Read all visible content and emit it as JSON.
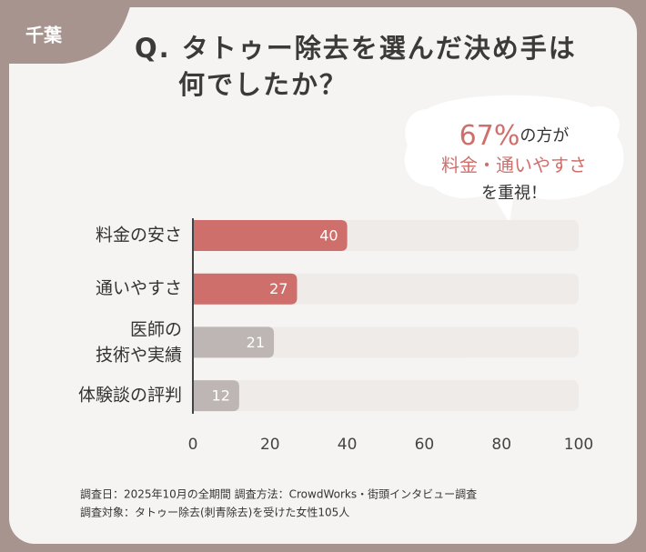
{
  "chart_data": {
    "type": "bar",
    "orientation": "horizontal",
    "badge": "千葉",
    "title": "Q. タトゥー除去を選んだ決め手は\n何でしたか？",
    "annotation": {
      "highlight": "67%",
      "text1": "の方が",
      "highlight2": "料金・通いやすさ",
      "text2": "を重視！"
    },
    "categories": [
      "料金の安さ",
      "通いやすさ",
      "医師の\n技術や実績",
      "体験談の評判"
    ],
    "values": [
      40,
      27,
      21,
      12
    ],
    "colors": [
      "#cf6f6c",
      "#cf6f6c",
      "#bdb6b4",
      "#bdb6b4"
    ],
    "xlim": [
      0,
      100
    ],
    "xticks": [
      0,
      20,
      40,
      60,
      80,
      100
    ],
    "notes": [
      "調査日：2025年10月の全期間  調査方法：CrowdWorks・街頭インタビュー調査",
      "調査対象：タトゥー除去(刺青除去)を受けた女性105人"
    ]
  }
}
